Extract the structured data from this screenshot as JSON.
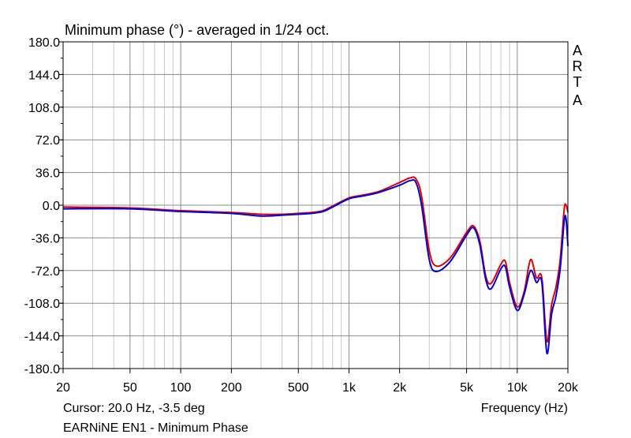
{
  "chart_data": {
    "type": "line",
    "title": "Minimum phase (°) - averaged in 1/24 oct.",
    "xlabel": "Frequency (Hz)",
    "ylabel": "",
    "x_scale": "log",
    "xlim": [
      20,
      20000
    ],
    "ylim": [
      -180,
      180
    ],
    "y_ticks": [
      180,
      144,
      108,
      72,
      36,
      0,
      -36,
      -72,
      -108,
      -144,
      -180
    ],
    "y_tick_labels": [
      "180.0",
      "144.0",
      "108.0",
      "72.0",
      "36.0",
      "0.0",
      "-36.0",
      "-72.0",
      "-108.0",
      "-144.0",
      "-180.0"
    ],
    "x_ticks": [
      20,
      50,
      100,
      200,
      500,
      1000,
      2000,
      5000,
      10000,
      20000
    ],
    "x_tick_labels": [
      "20",
      "50",
      "100",
      "200",
      "500",
      "1k",
      "2k",
      "5k",
      "10k",
      "20k"
    ],
    "grid": true,
    "brand_letters": [
      "A",
      "R",
      "T",
      "A"
    ],
    "cursor_text": "Cursor: 20.0 Hz, -3.5 deg",
    "subtitle": "EARNiNE EN1 - Minimum Phase",
    "series": [
      {
        "color": "#e00000",
        "x": [
          20,
          50,
          100,
          200,
          300,
          400,
          500,
          600,
          700,
          800,
          1000,
          1200,
          1500,
          2000,
          2300,
          2500,
          2700,
          3000,
          3300,
          4000,
          5000,
          5500,
          6000,
          6500,
          7000,
          8000,
          8500,
          9000,
          10000,
          11000,
          12000,
          13000,
          14000,
          15000,
          16000,
          17000,
          18000,
          19000,
          19500,
          20000
        ],
        "y": [
          -2,
          -3,
          -6,
          -8,
          -10,
          -10,
          -9,
          -8,
          -6,
          -1,
          8,
          11,
          15,
          25,
          30,
          29,
          10,
          -50,
          -67,
          -58,
          -30,
          -23,
          -40,
          -78,
          -86,
          -65,
          -62,
          -85,
          -112,
          -95,
          -60,
          -80,
          -80,
          -150,
          -110,
          -90,
          -60,
          -5,
          0,
          -8
        ]
      },
      {
        "color": "#0000e0",
        "x": [
          20,
          50,
          100,
          200,
          300,
          400,
          500,
          600,
          700,
          800,
          1000,
          1200,
          1500,
          2000,
          2300,
          2500,
          2700,
          3000,
          3300,
          4000,
          5000,
          5500,
          6000,
          6500,
          7000,
          8000,
          8500,
          9000,
          10000,
          11000,
          12000,
          13000,
          14000,
          15000,
          16000,
          17000,
          18000,
          19000,
          19500,
          20000
        ],
        "y": [
          -4,
          -4,
          -7,
          -9,
          -12,
          -11,
          -10,
          -9,
          -7,
          -2,
          7,
          10,
          14,
          22,
          27,
          25,
          0,
          -60,
          -73,
          -62,
          -33,
          -25,
          -44,
          -82,
          -92,
          -70,
          -68,
          -90,
          -116,
          -98,
          -72,
          -85,
          -85,
          -163,
          -120,
          -100,
          -70,
          -18,
          -15,
          -45
        ]
      }
    ]
  }
}
